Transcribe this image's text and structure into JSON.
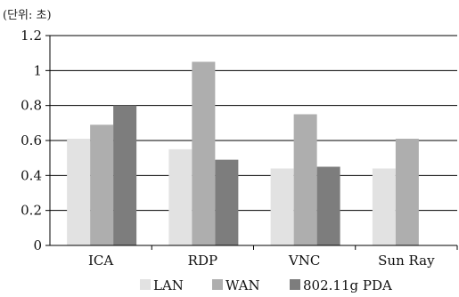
{
  "chart_data": {
    "type": "bar",
    "unit_label": "(단위: 초)",
    "categories": [
      "ICA",
      "RDP",
      "VNC",
      "Sun Ray"
    ],
    "series": [
      {
        "name": "LAN",
        "color": "#e2e2e2",
        "values": [
          0.61,
          0.55,
          0.44,
          0.44
        ]
      },
      {
        "name": "WAN",
        "color": "#aeaeae",
        "values": [
          0.69,
          1.05,
          0.75,
          0.61
        ]
      },
      {
        "name": "802.11g PDA",
        "color": "#7d7d7d",
        "values": [
          0.8,
          0.49,
          0.45,
          null
        ]
      }
    ],
    "ylim": [
      0,
      1.2
    ],
    "y_ticks": [
      "0",
      "0.2",
      "0.4",
      "0.6",
      "0.8",
      "1",
      "1.2"
    ],
    "grid": true,
    "legend_position": "bottom"
  }
}
